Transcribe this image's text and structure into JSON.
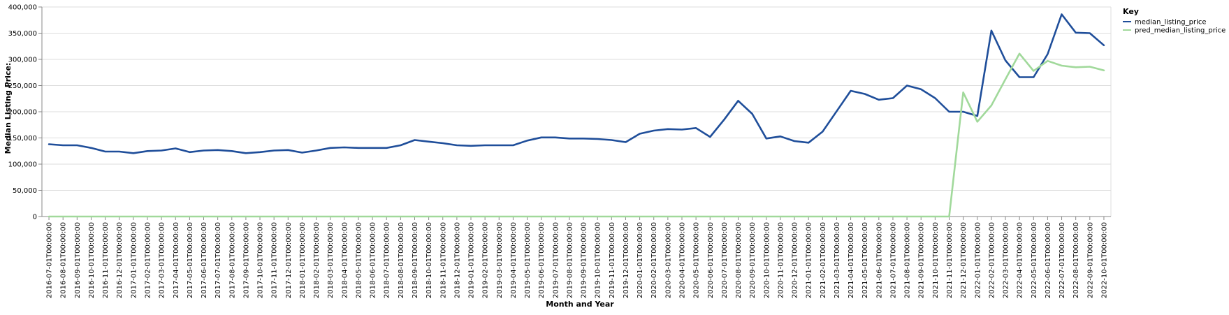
{
  "chart_data": {
    "type": "line",
    "xlabel": "Month and Year",
    "ylabel": "Median Listing Price:",
    "ylim": [
      0,
      400000
    ],
    "yticks": [
      "0",
      "50,000",
      "100,000",
      "150,000",
      "200,000",
      "250,000",
      "300,000",
      "350,000",
      "400,000"
    ],
    "grid": true,
    "legend": {
      "title": "Key",
      "placement": "top-right"
    },
    "x": [
      "2016-07-01T00:00:00",
      "2016-08-01T00:00:00",
      "2016-09-01T00:00:00",
      "2016-10-01T00:00:00",
      "2016-11-01T00:00:00",
      "2016-12-01T00:00:00",
      "2017-01-01T00:00:00",
      "2017-02-01T00:00:00",
      "2017-03-01T00:00:00",
      "2017-04-01T00:00:00",
      "2017-05-01T00:00:00",
      "2017-06-01T00:00:00",
      "2017-07-01T00:00:00",
      "2017-08-01T00:00:00",
      "2017-09-01T00:00:00",
      "2017-10-01T00:00:00",
      "2017-11-01T00:00:00",
      "2017-12-01T00:00:00",
      "2018-01-01T00:00:00",
      "2018-02-01T00:00:00",
      "2018-03-01T00:00:00",
      "2018-04-01T00:00:00",
      "2018-05-01T00:00:00",
      "2018-06-01T00:00:00",
      "2018-07-01T00:00:00",
      "2018-08-01T00:00:00",
      "2018-09-01T00:00:00",
      "2018-10-01T00:00:00",
      "2018-11-01T00:00:00",
      "2018-12-01T00:00:00",
      "2019-01-01T00:00:00",
      "2019-02-01T00:00:00",
      "2019-03-01T00:00:00",
      "2019-04-01T00:00:00",
      "2019-05-01T00:00:00",
      "2019-06-01T00:00:00",
      "2019-07-01T00:00:00",
      "2019-08-01T00:00:00",
      "2019-09-01T00:00:00",
      "2019-10-01T00:00:00",
      "2019-11-01T00:00:00",
      "2019-12-01T00:00:00",
      "2020-01-01T00:00:00",
      "2020-02-01T00:00:00",
      "2020-03-01T00:00:00",
      "2020-04-01T00:00:00",
      "2020-05-01T00:00:00",
      "2020-06-01T00:00:00",
      "2020-07-01T00:00:00",
      "2020-08-01T00:00:00",
      "2020-09-01T00:00:00",
      "2020-10-01T00:00:00",
      "2020-11-01T00:00:00",
      "2020-12-01T00:00:00",
      "2021-01-01T00:00:00",
      "2021-02-01T00:00:00",
      "2021-03-01T00:00:00",
      "2021-04-01T00:00:00",
      "2021-05-01T00:00:00",
      "2021-06-01T00:00:00",
      "2021-07-01T00:00:00",
      "2021-08-01T00:00:00",
      "2021-09-01T00:00:00",
      "2021-10-01T00:00:00",
      "2021-11-01T00:00:00",
      "2021-12-01T00:00:00",
      "2022-01-01T00:00:00",
      "2022-02-01T00:00:00",
      "2022-03-01T00:00:00",
      "2022-04-01T00:00:00",
      "2022-05-01T00:00:00",
      "2022-06-01T00:00:00",
      "2022-07-01T00:00:00",
      "2022-08-01T00:00:00",
      "2022-09-01T00:00:00",
      "2022-10-01T00:00:00"
    ],
    "series": [
      {
        "name": "median_listing_price",
        "color": "#1f4e9a",
        "values": [
          138000,
          136000,
          136000,
          131000,
          124000,
          124000,
          121000,
          125000,
          126000,
          130000,
          123000,
          126000,
          127000,
          125000,
          121000,
          123000,
          126000,
          127000,
          122000,
          126000,
          131000,
          132000,
          131000,
          131000,
          131000,
          136000,
          146000,
          143000,
          140000,
          136000,
          135000,
          136000,
          136000,
          136000,
          145000,
          151000,
          151000,
          149000,
          149000,
          148000,
          146000,
          142000,
          158000,
          164000,
          167000,
          166000,
          169000,
          152000,
          185000,
          221000,
          196000,
          149000,
          153000,
          144000,
          141000,
          162000,
          201000,
          240000,
          234000,
          223000,
          226000,
          250000,
          243000,
          226000,
          200000,
          200000,
          192000,
          355000,
          298000,
          266000,
          266000,
          310000,
          386000,
          351000,
          350000,
          327000
        ]
      },
      {
        "name": "pred_median_listing_price",
        "color": "#a1d99b",
        "values": [
          0,
          0,
          0,
          0,
          0,
          0,
          0,
          0,
          0,
          0,
          0,
          0,
          0,
          0,
          0,
          0,
          0,
          0,
          0,
          0,
          0,
          0,
          0,
          0,
          0,
          0,
          0,
          0,
          0,
          0,
          0,
          0,
          0,
          0,
          0,
          0,
          0,
          0,
          0,
          0,
          0,
          0,
          0,
          0,
          0,
          0,
          0,
          0,
          0,
          0,
          0,
          0,
          0,
          0,
          0,
          0,
          0,
          0,
          0,
          0,
          0,
          0,
          0,
          0,
          0,
          237000,
          181000,
          212000,
          262000,
          311000,
          278000,
          297000,
          288000,
          285000,
          286000,
          279000
        ]
      }
    ]
  }
}
